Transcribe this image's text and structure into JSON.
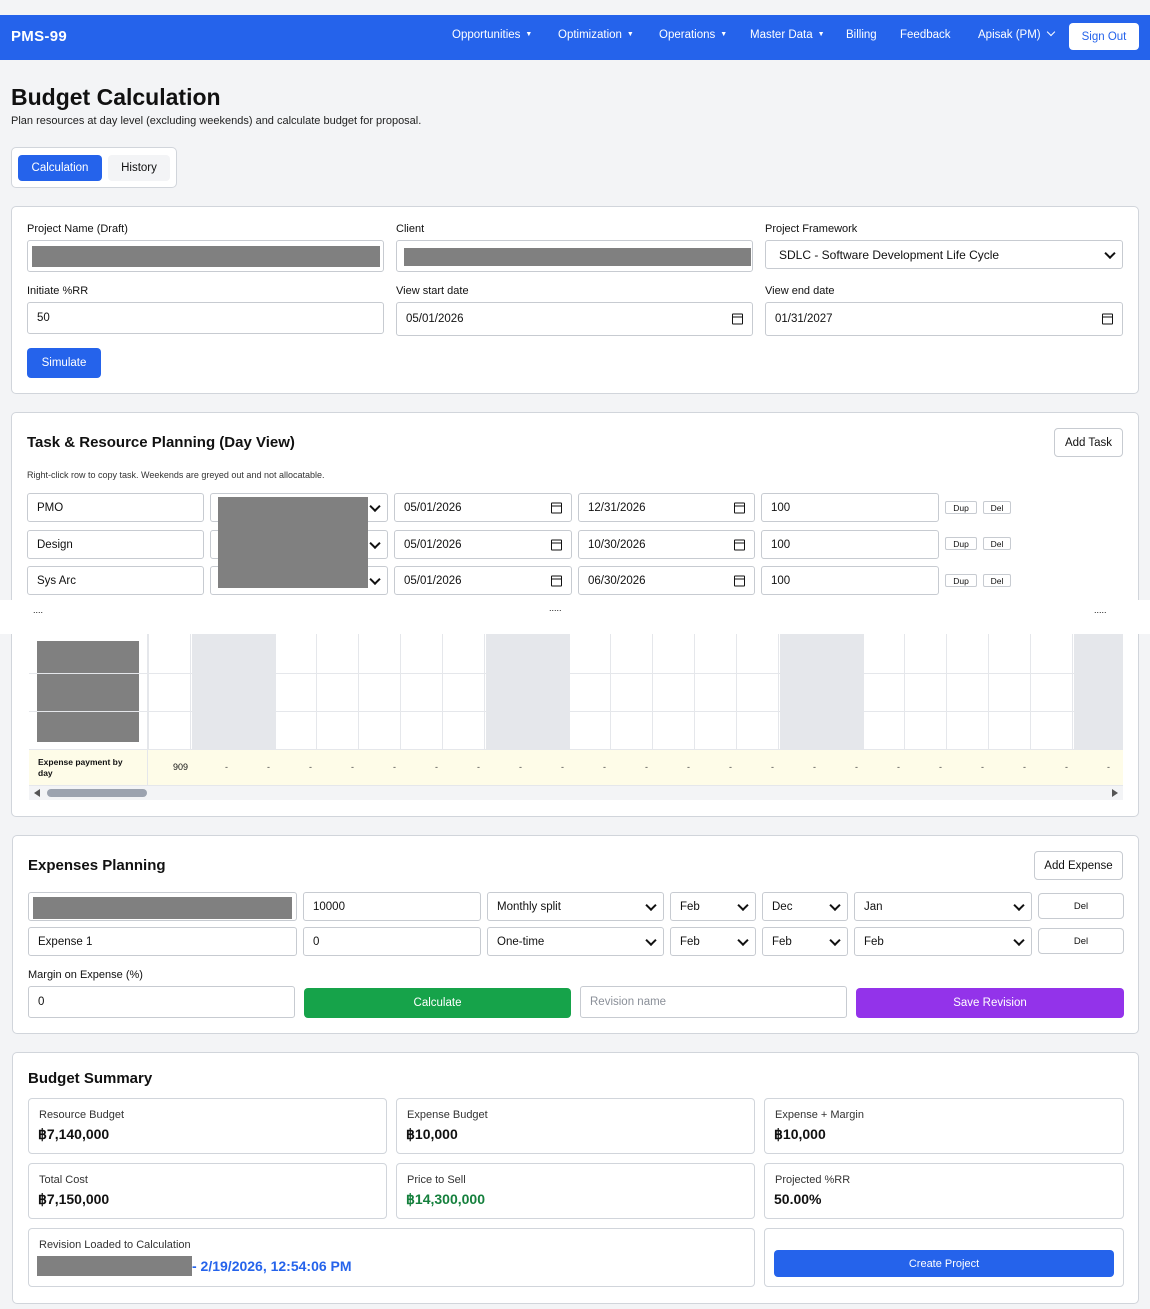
{
  "nav": {
    "brand": "PMS-99",
    "items": [
      "Opportunities",
      "Optimization",
      "Operations",
      "Master Data",
      "Billing",
      "Feedback"
    ],
    "user": "Apisak (PM)",
    "signout": "Sign Out"
  },
  "page": {
    "title": "Budget Calculation",
    "subtitle": "Plan resources at day level (excluding weekends) and calculate budget for proposal.",
    "tabs": [
      "Calculation",
      "History"
    ]
  },
  "project": {
    "name_label": "Project Name (Draft)",
    "client_label": "Client",
    "framework_label": "Project Framework",
    "framework_value": "SDLC - Software Development Life Cycle",
    "rr_label": "Initiate %RR",
    "rr_value": "50",
    "start_label": "View start date",
    "start_value": "05/01/2026",
    "end_label": "View end date",
    "end_value": "01/31/2027",
    "simulate": "Simulate"
  },
  "tasks": {
    "title": "Task & Resource Planning (Day View)",
    "add": "Add Task",
    "hint": "Right-click row to copy task. Weekends are greyed out and not allocatable.",
    "dup": "Dup",
    "del": "Del",
    "rows": [
      {
        "name": "PMO",
        "start": "05/01/2026",
        "end": "12/31/2026",
        "pct": "100"
      },
      {
        "name": "Design",
        "start": "05/01/2026",
        "end": "10/30/2026",
        "pct": "100"
      },
      {
        "name": "Sys Arc",
        "start": "05/01/2026",
        "end": "06/30/2026",
        "pct": "100"
      }
    ],
    "header_dots": [
      "....",
      ".....",
      "....."
    ],
    "expense_row_label": "Expense payment by day",
    "expense_row_first": "909",
    "expense_row_dash": "-"
  },
  "expenses": {
    "title": "Expenses Planning",
    "add": "Add Expense",
    "del": "Del",
    "rows": [
      {
        "name": "",
        "amount": "10000",
        "type": "Monthly split",
        "m1": "Feb",
        "m2": "Dec",
        "m3": "Jan"
      },
      {
        "name": "Expense 1",
        "amount": "0",
        "type": "One-time",
        "m1": "Feb",
        "m2": "Feb",
        "m3": "Feb"
      }
    ],
    "margin_label": "Margin on Expense (%)",
    "margin_value": "0",
    "calculate": "Calculate",
    "revision_placeholder": "Revision name",
    "save": "Save Revision"
  },
  "summary": {
    "title": "Budget Summary",
    "resource_label": "Resource Budget",
    "resource_value": "฿7,140,000",
    "expense_label": "Expense Budget",
    "expense_value": "฿10,000",
    "expmargin_label": "Expense + Margin",
    "expmargin_value": "฿10,000",
    "total_label": "Total Cost",
    "total_value": "฿7,150,000",
    "price_label": "Price to Sell",
    "price_value": "฿14,300,000",
    "rr_label": "Projected %RR",
    "rr_value": "50.00%",
    "revision_label": "Revision Loaded to Calculation",
    "revision_value": "- 2/19/2026, 12:54:06 PM",
    "create": "Create Project"
  },
  "colors": {
    "primary": "#2563eb",
    "green": "#16a34a",
    "purple": "#9333ea",
    "price": "#15803d"
  }
}
